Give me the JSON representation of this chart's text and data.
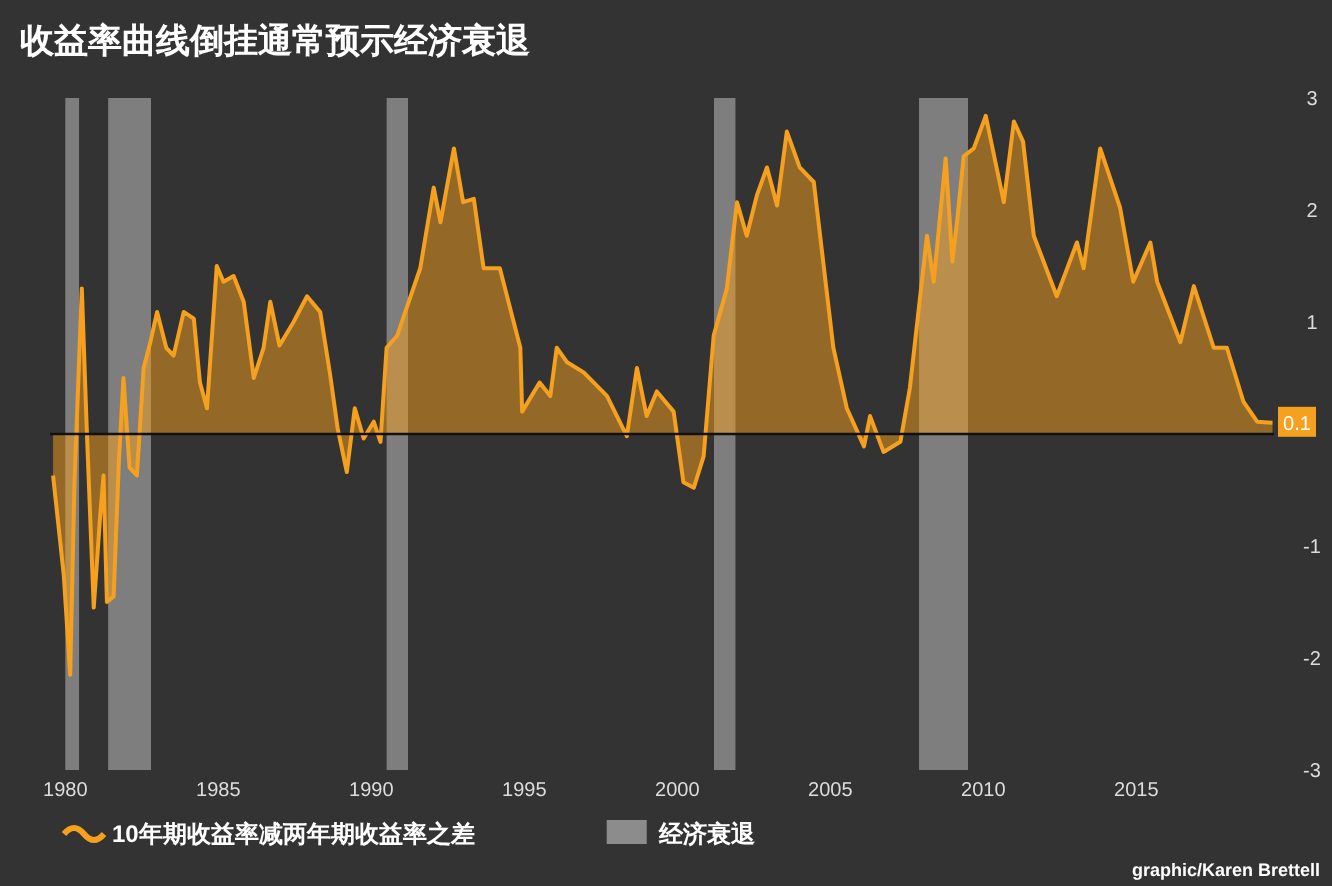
{
  "chart_data": {
    "type": "area",
    "title": "收益率曲线倒挂通常预示经济衰退",
    "xlim": [
      1979.5,
      2019.5
    ],
    "xticks": [
      1980,
      1985,
      1990,
      1995,
      2000,
      2005,
      2010,
      2015
    ],
    "ylim": [
      -3,
      3
    ],
    "yticks": [
      -3,
      -2,
      -1,
      1,
      2,
      3
    ],
    "legend": "bottom",
    "grid": false,
    "series": [
      {
        "name": "10年期收益率减两年期收益率之差",
        "color": "#f5a01e",
        "x": [
          1979.6,
          1979.95,
          1980.16,
          1980.3,
          1980.54,
          1980.7,
          1980.93,
          1981.14,
          1981.25,
          1981.36,
          1981.58,
          1981.75,
          1981.9,
          1982.1,
          1982.34,
          1982.56,
          1982.78,
          1983.0,
          1983.3,
          1983.54,
          1983.87,
          1984.2,
          1984.4,
          1984.63,
          1984.95,
          1985.17,
          1985.5,
          1985.83,
          1986.16,
          1986.48,
          1986.7,
          1987.0,
          1987.46,
          1987.9,
          1988.33,
          1988.66,
          1988.9,
          1989.2,
          1989.46,
          1989.75,
          1990.08,
          1990.3,
          1990.5,
          1990.85,
          1991.06,
          1991.6,
          1992.04,
          1992.26,
          1992.7,
          1993.0,
          1993.35,
          1993.67,
          1994.2,
          1994.87,
          1994.93,
          1995.5,
          1995.85,
          1996.06,
          1996.4,
          1996.94,
          1997.7,
          1998.35,
          1998.68,
          1999.0,
          1999.33,
          1999.88,
          2000.2,
          2000.54,
          2000.86,
          2001.19,
          2001.62,
          2001.95,
          2002.27,
          2002.6,
          2002.93,
          2003.26,
          2003.58,
          2004.0,
          2004.46,
          2005.1,
          2005.54,
          2006.1,
          2006.3,
          2006.74,
          2007.29,
          2007.6,
          2008.16,
          2008.38,
          2008.77,
          2008.99,
          2009.14,
          2009.36,
          2009.69,
          2010.08,
          2010.67,
          2011.0,
          2011.3,
          2011.65,
          2012.4,
          2013.06,
          2013.28,
          2013.82,
          2014.47,
          2014.9,
          2015.46,
          2015.68,
          2016.44,
          2016.88,
          2017.53,
          2017.96,
          2018.5,
          2018.95,
          2019.45
        ],
        "values": [
          -0.37,
          -1.26,
          -2.15,
          -0.43,
          1.3,
          0.05,
          -1.55,
          -0.73,
          -0.37,
          -1.5,
          -1.45,
          -0.25,
          0.5,
          -0.3,
          -0.37,
          0.59,
          0.82,
          1.09,
          0.77,
          0.7,
          1.09,
          1.03,
          0.46,
          0.23,
          1.5,
          1.36,
          1.41,
          1.18,
          0.5,
          0.77,
          1.18,
          0.79,
          1.0,
          1.23,
          1.09,
          0.52,
          0.05,
          -0.34,
          0.23,
          -0.04,
          0.11,
          -0.07,
          0.77,
          0.88,
          1.05,
          1.48,
          2.2,
          1.89,
          2.55,
          2.07,
          2.1,
          1.48,
          1.48,
          0.77,
          0.2,
          0.46,
          0.34,
          0.77,
          0.64,
          0.55,
          0.34,
          -0.02,
          0.59,
          0.16,
          0.38,
          0.2,
          -0.43,
          -0.48,
          -0.2,
          0.88,
          1.3,
          2.07,
          1.77,
          2.13,
          2.38,
          2.04,
          2.7,
          2.38,
          2.25,
          0.77,
          0.23,
          -0.11,
          0.16,
          -0.16,
          -0.07,
          0.41,
          1.77,
          1.36,
          2.46,
          1.54,
          1.89,
          2.48,
          2.55,
          2.84,
          2.07,
          2.79,
          2.61,
          1.77,
          1.23,
          1.71,
          1.48,
          2.55,
          2.02,
          1.36,
          1.71,
          1.36,
          0.82,
          1.32,
          0.77,
          0.77,
          0.29,
          0.11,
          0.1
        ],
        "value_labels": [
          null,
          null,
          null,
          null,
          null,
          null,
          null,
          null,
          null,
          null,
          null,
          null,
          null,
          null,
          null,
          null,
          null,
          null,
          null,
          null,
          null,
          null,
          null,
          null,
          null,
          null,
          null,
          null,
          null,
          null,
          null,
          null,
          null,
          null,
          null,
          null,
          null,
          null,
          null,
          null,
          null,
          null,
          null,
          null,
          null,
          null,
          null,
          null,
          null,
          null,
          null,
          null,
          null,
          null,
          null,
          null,
          null,
          null,
          null,
          null,
          null,
          null,
          null,
          null,
          null,
          null,
          null,
          null,
          null,
          null,
          null,
          null,
          null,
          null,
          null,
          null,
          null,
          null,
          null,
          null,
          null,
          null,
          null,
          null,
          null,
          null,
          null,
          null,
          null,
          null,
          null,
          null,
          null,
          null,
          null,
          null,
          null,
          null,
          null,
          null,
          null,
          null,
          null,
          null,
          null,
          null,
          null,
          null,
          null,
          null,
          null,
          null,
          "0.1"
        ]
      }
    ],
    "bands": [
      {
        "axis": "x",
        "from": 1980.0,
        "to": 1980.45,
        "label": "经济衰退",
        "color": "#8c8c8c"
      },
      {
        "axis": "x",
        "from": 1981.4,
        "to": 1982.8,
        "color": "#8c8c8c"
      },
      {
        "axis": "x",
        "from": 1990.5,
        "to": 1991.2,
        "color": "#8c8c8c"
      },
      {
        "axis": "x",
        "from": 2001.2,
        "to": 2001.9,
        "color": "#8c8c8c"
      },
      {
        "axis": "x",
        "from": 2007.9,
        "to": 2009.5,
        "color": "#8c8c8c"
      }
    ],
    "ref_lines": [
      {
        "axis": "y",
        "value": 0,
        "color": "#111111"
      }
    ],
    "annotations": [
      "graphic/Karen Brettell"
    ]
  }
}
